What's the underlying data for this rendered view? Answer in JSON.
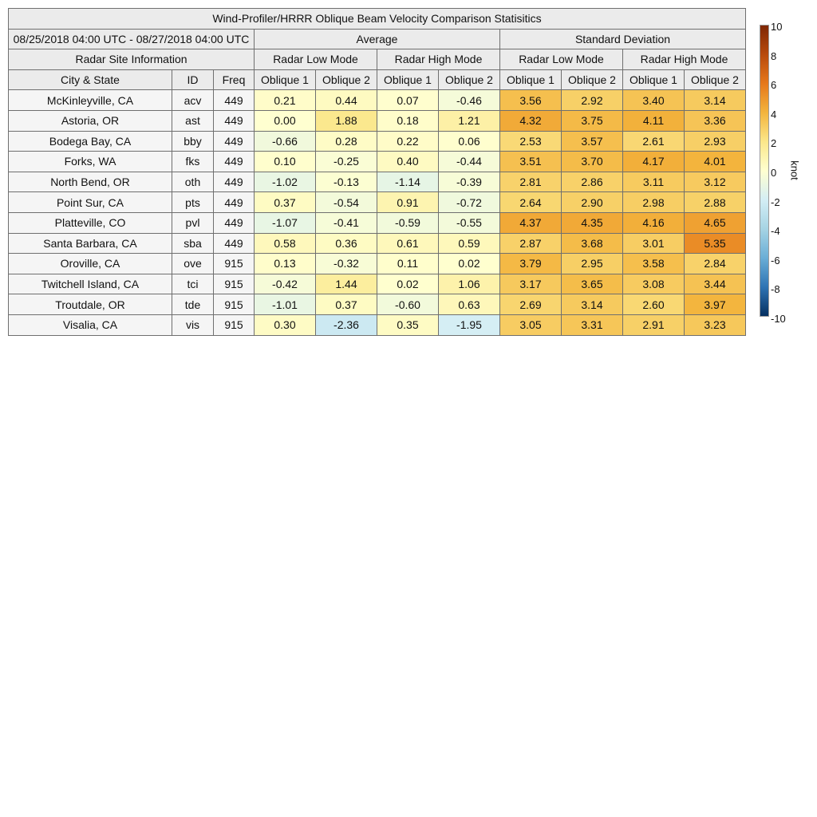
{
  "title": "Wind-Profiler/HRRR Oblique Beam Velocity Comparison Statisitics",
  "date_range": "08/25/2018 04:00 UTC - 08/27/2018 04:00 UTC",
  "group_average": "Average",
  "group_std": "Standard Deviation",
  "radar_site_info": "Radar Site Information",
  "mode_low": "Radar Low Mode",
  "mode_high": "Radar High Mode",
  "col_city": "City & State",
  "col_id": "ID",
  "col_freq": "Freq",
  "oblique_1": "Oblique 1",
  "oblique_2": "Oblique 2",
  "colorbar": {
    "unit": "knot",
    "ticks": [
      "10",
      "8",
      "6",
      "4",
      "2",
      "0",
      "-2",
      "-4",
      "-6",
      "-8",
      "-10"
    ],
    "colors": [
      "#7f2704",
      "#b84a0c",
      "#e6781b",
      "#f3b43d",
      "#fbe78a",
      "#ffffd0",
      "#d4eef5",
      "#a6d4e4",
      "#6aaed6",
      "#2f74b4",
      "#053061"
    ]
  },
  "chart_data": {
    "type": "heatmap",
    "title": "Wind-Profiler/HRRR Oblique Beam Velocity Comparison Statisitics",
    "colorbar_range": [
      -10,
      10
    ],
    "colorbar_unit": "knot",
    "column_groups": [
      "Average",
      "Standard Deviation"
    ],
    "modes": [
      "Radar Low Mode",
      "Radar High Mode"
    ],
    "columns": [
      "Oblique 1",
      "Oblique 2"
    ],
    "rows": [
      {
        "city": "McKinleyville, CA",
        "id": "acv",
        "freq": "449",
        "values": [
          0.21,
          0.44,
          0.07,
          -0.46,
          3.56,
          2.92,
          3.4,
          3.14
        ]
      },
      {
        "city": "Astoria, OR",
        "id": "ast",
        "freq": "449",
        "values": [
          0.0,
          1.88,
          0.18,
          1.21,
          4.32,
          3.75,
          4.11,
          3.36
        ]
      },
      {
        "city": "Bodega Bay, CA",
        "id": "bby",
        "freq": "449",
        "values": [
          -0.66,
          0.28,
          0.22,
          0.06,
          2.53,
          3.57,
          2.61,
          2.93
        ]
      },
      {
        "city": "Forks, WA",
        "id": "fks",
        "freq": "449",
        "values": [
          0.1,
          -0.25,
          0.4,
          -0.44,
          3.51,
          3.7,
          4.17,
          4.01
        ]
      },
      {
        "city": "North Bend, OR",
        "id": "oth",
        "freq": "449",
        "values": [
          -1.02,
          -0.13,
          -1.14,
          -0.39,
          2.81,
          2.86,
          3.11,
          3.12
        ]
      },
      {
        "city": "Point Sur, CA",
        "id": "pts",
        "freq": "449",
        "values": [
          0.37,
          -0.54,
          0.91,
          -0.72,
          2.64,
          2.9,
          2.98,
          2.88
        ]
      },
      {
        "city": "Platteville, CO",
        "id": "pvl",
        "freq": "449",
        "values": [
          -1.07,
          -0.41,
          -0.59,
          -0.55,
          4.37,
          4.35,
          4.16,
          4.65
        ]
      },
      {
        "city": "Santa Barbara, CA",
        "id": "sba",
        "freq": "449",
        "values": [
          0.58,
          0.36,
          0.61,
          0.59,
          2.87,
          3.68,
          3.01,
          5.35
        ]
      },
      {
        "city": "Oroville, CA",
        "id": "ove",
        "freq": "915",
        "values": [
          0.13,
          -0.32,
          0.11,
          0.02,
          3.79,
          2.95,
          3.58,
          2.84
        ]
      },
      {
        "city": "Twitchell Island, CA",
        "id": "tci",
        "freq": "915",
        "values": [
          -0.42,
          1.44,
          0.02,
          1.06,
          3.17,
          3.65,
          3.08,
          3.44
        ]
      },
      {
        "city": "Troutdale, OR",
        "id": "tde",
        "freq": "915",
        "values": [
          -1.01,
          0.37,
          -0.6,
          0.63,
          2.69,
          3.14,
          2.6,
          3.97
        ]
      },
      {
        "city": "Visalia, CA",
        "id": "vis",
        "freq": "915",
        "values": [
          0.3,
          -2.36,
          0.35,
          -1.95,
          3.05,
          3.31,
          2.91,
          3.23
        ]
      }
    ]
  }
}
